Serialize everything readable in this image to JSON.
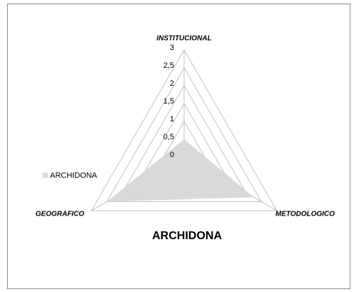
{
  "chart_data": {
    "type": "radar",
    "title": "ARCHIDONA",
    "categories": [
      "INSTITUCIONAL",
      "METODOLOGICO",
      "GEOGRAFICO"
    ],
    "series": [
      {
        "name": "ARCHIDONA",
        "color": "#d9d9d9",
        "values": [
          0.5,
          2.25,
          2.5
        ]
      }
    ],
    "ylim": [
      0,
      3
    ],
    "yticks": [
      0,
      {
        "value": 0.5,
        "label": "0,5"
      },
      1,
      {
        "value": 1.5,
        "label": "1,5"
      },
      2,
      {
        "value": 2.5,
        "label": "2,5"
      },
      3
    ],
    "grid": true,
    "legend": "left"
  }
}
